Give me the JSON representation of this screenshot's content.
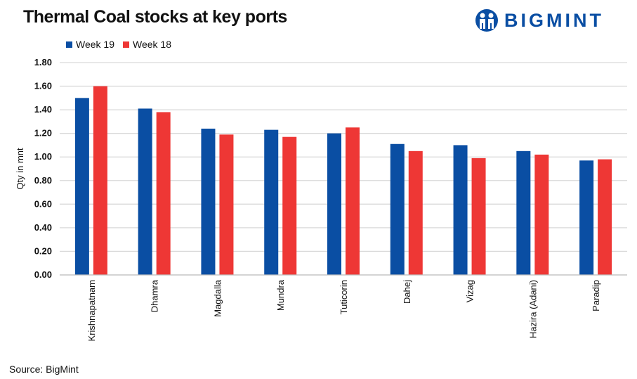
{
  "title": "Thermal Coal stocks at key ports",
  "logo": {
    "text": "BIGMINT",
    "color": "#0a4ea3"
  },
  "source": "Source: BigMint",
  "chart_data": {
    "type": "bar",
    "title": "Thermal Coal stocks at key ports",
    "xlabel": "",
    "ylabel": "Qty in mnt",
    "ylim": [
      0,
      1.8
    ],
    "yticks": [
      "0.00",
      "0.20",
      "0.40",
      "0.60",
      "0.80",
      "1.00",
      "1.20",
      "1.40",
      "1.60",
      "1.80"
    ],
    "grid": true,
    "legend_position": "top-left",
    "categories": [
      "Krishnapatnam",
      "Dhamra",
      "Magdalla",
      "Mundra",
      "Tuticorin",
      "Dahej",
      "Vizag",
      "Hazira (Adani)",
      "Paradip"
    ],
    "series": [
      {
        "name": "Week 19",
        "color": "#0a4ea3",
        "values": [
          1.5,
          1.41,
          1.24,
          1.23,
          1.2,
          1.11,
          1.1,
          1.05,
          0.97
        ]
      },
      {
        "name": "Week 18",
        "color": "#ee3735",
        "values": [
          1.6,
          1.38,
          1.19,
          1.17,
          1.25,
          1.05,
          0.99,
          1.02,
          0.98
        ]
      }
    ]
  }
}
